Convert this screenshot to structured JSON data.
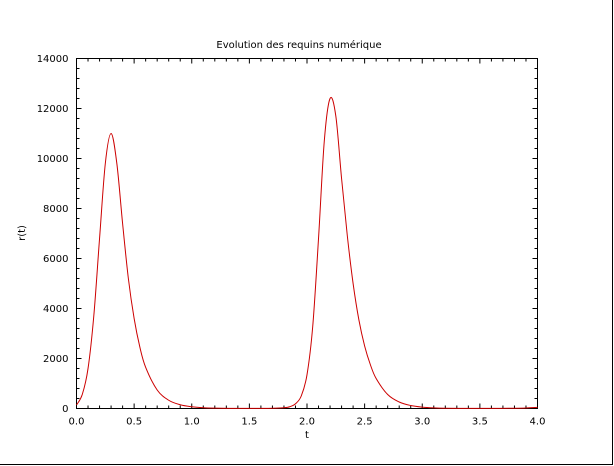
{
  "chart_data": {
    "type": "line",
    "title": "Evolution des requins numérique",
    "xlabel": "t",
    "ylabel": "r(t)",
    "xlim": [
      0,
      4
    ],
    "ylim": [
      0,
      14000
    ],
    "xticks": [
      "0.0",
      "0.5",
      "1.0",
      "1.5",
      "2.0",
      "2.5",
      "3.0",
      "3.5",
      "4.0"
    ],
    "yticks": [
      "0",
      "2000",
      "4000",
      "6000",
      "8000",
      "10000",
      "12000",
      "14000"
    ],
    "grid": false,
    "legend": "none",
    "series": [
      {
        "color": "#cc0000",
        "x": [
          0.0,
          0.05,
          0.1,
          0.15,
          0.2,
          0.25,
          0.3,
          0.35,
          0.4,
          0.45,
          0.5,
          0.55,
          0.6,
          0.7,
          0.8,
          0.9,
          1.0,
          1.1,
          1.2,
          1.4,
          1.6,
          1.7,
          1.8,
          1.85,
          1.9,
          1.95,
          2.0,
          2.05,
          2.1,
          2.15,
          2.2,
          2.25,
          2.3,
          2.35,
          2.4,
          2.45,
          2.5,
          2.55,
          2.6,
          2.7,
          2.8,
          2.9,
          3.0,
          3.1,
          3.2,
          3.4,
          3.6,
          3.8,
          3.9,
          4.0
        ],
        "y": [
          140,
          560,
          1600,
          3700,
          6800,
          9800,
          11000,
          9800,
          7400,
          5200,
          3600,
          2450,
          1650,
          740,
          330,
          150,
          70,
          30,
          15,
          5,
          5,
          10,
          30,
          70,
          190,
          500,
          1350,
          3300,
          6800,
          10700,
          12400,
          11700,
          9200,
          6900,
          5000,
          3550,
          2500,
          1750,
          1200,
          560,
          260,
          120,
          55,
          25,
          12,
          5,
          5,
          10,
          20,
          45
        ]
      }
    ]
  }
}
